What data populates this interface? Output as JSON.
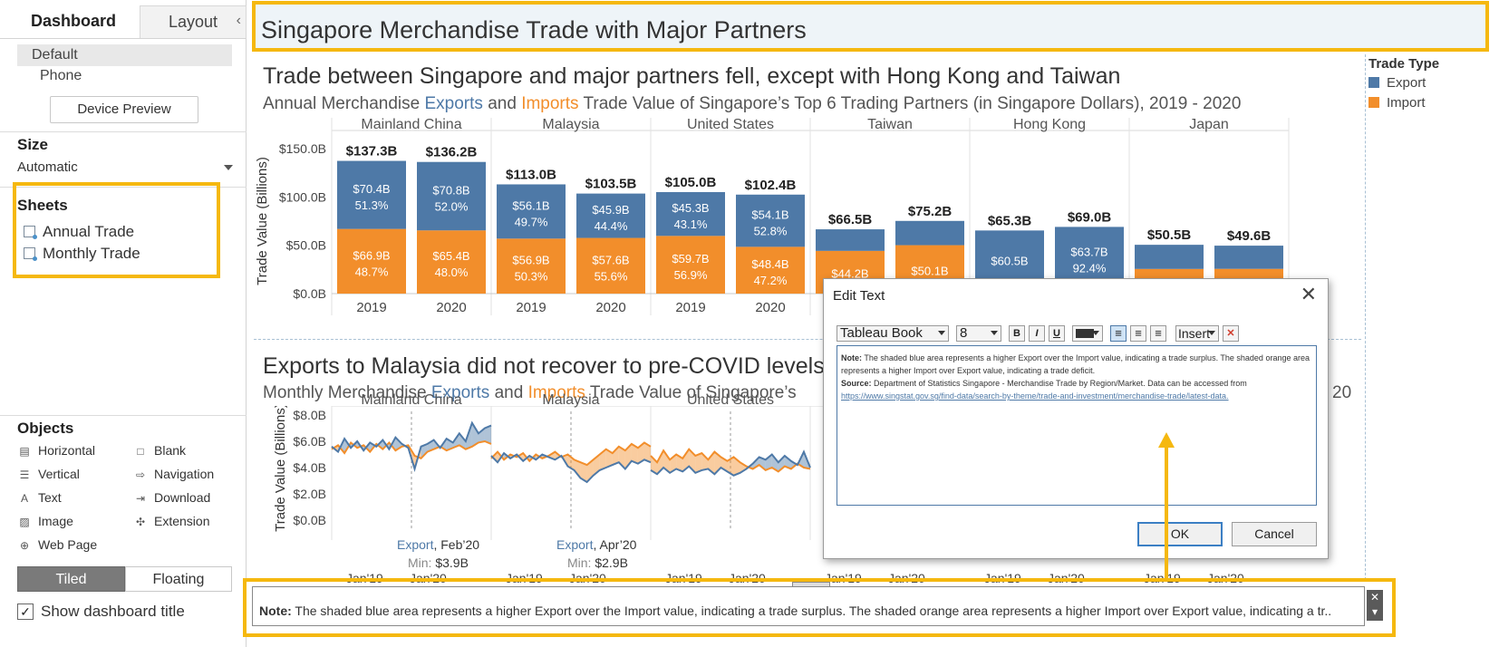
{
  "left_pane": {
    "tabs": {
      "dashboard": "Dashboard",
      "layout": "Layout",
      "collapse": "‹"
    },
    "device": {
      "default": "Default",
      "phone": "Phone",
      "preview_button": "Device Preview"
    },
    "size": {
      "heading": "Size",
      "value": "Automatic"
    },
    "sheets": {
      "heading": "Sheets",
      "items": [
        "Annual Trade",
        "Monthly Trade"
      ]
    },
    "objects": {
      "heading": "Objects",
      "items": [
        {
          "label": "Horizontal",
          "icon": "▤"
        },
        {
          "label": "Blank",
          "icon": "□"
        },
        {
          "label": "Vertical",
          "icon": "☰"
        },
        {
          "label": "Navigation",
          "icon": "⇨"
        },
        {
          "label": "Text",
          "icon": "A"
        },
        {
          "label": "Download",
          "icon": "⇥"
        },
        {
          "label": "Image",
          "icon": "▨"
        },
        {
          "label": "Extension",
          "icon": "✣"
        },
        {
          "label": "Web Page",
          "icon": "⊕"
        }
      ]
    },
    "layout_mode": {
      "tiled": "Tiled",
      "floating": "Floating"
    },
    "show_title": {
      "checked": "✓",
      "label": "Show dashboard title"
    }
  },
  "dashboard": {
    "title": "Singapore Merchandise Trade with Major Partners",
    "annual": {
      "title": "Trade between Singapore and major partners fell, except with Hong Kong and Taiwan",
      "sub_prefix": "Annual Merchandise ",
      "sub_exports": "Exports",
      "sub_and": " and ",
      "sub_imports": "Imports",
      "sub_suffix": " Trade Value of Singapore’s Top 6 Trading Partners (in Singapore Dollars), 2019 - 2020"
    },
    "monthly": {
      "title": "Exports to Malaysia did not recover to pre-COVID levels",
      "sub_prefix": "Monthly Merchandise ",
      "sub_exports": "Exports",
      "sub_and": " and ",
      "sub_imports": "Imports",
      "sub_suffix": " Trade Value of Singapore’s",
      "sub_tail": "20"
    },
    "legend": {
      "title": "Trade Type",
      "export": "Export",
      "import": "Import"
    },
    "colors": {
      "export": "#4e79a7",
      "import": "#f28e2b",
      "highlight": "#f5b80f"
    },
    "note": {
      "label": "Note:",
      "text": " The shaded blue area represents a higher Export over the Import value, indicating a trade surplus. The shaded orange area represents a higher Import over Export value, indicating a tr..",
      "close_icon": "✕",
      "menu_icon": "▾"
    }
  },
  "chart_data": [
    {
      "type": "bar",
      "stacked": true,
      "partners": [
        "Mainland China",
        "Malaysia",
        "United States",
        "Taiwan",
        "Hong Kong",
        "Japan"
      ],
      "years": [
        "2019",
        "2020"
      ],
      "ylabel": "Trade Value (Billions)",
      "ylim": [
        0,
        150
      ],
      "yticks": [
        "$0.0B",
        "$50.0B",
        "$100.0B",
        "$150.0B"
      ],
      "bars": [
        {
          "partner": "Mainland China",
          "year": "2019",
          "total": 137.3,
          "total_label": "$137.3B",
          "export": 70.4,
          "export_label": "$70.4B",
          "export_pct": "51.3%",
          "import": 66.9,
          "import_label": "$66.9B",
          "import_pct": "48.7%"
        },
        {
          "partner": "Mainland China",
          "year": "2020",
          "total": 136.2,
          "total_label": "$136.2B",
          "export": 70.8,
          "export_label": "$70.8B",
          "export_pct": "52.0%",
          "import": 65.4,
          "import_label": "$65.4B",
          "import_pct": "48.0%"
        },
        {
          "partner": "Malaysia",
          "year": "2019",
          "total": 113.0,
          "total_label": "$113.0B",
          "export": 56.1,
          "export_label": "$56.1B",
          "export_pct": "49.7%",
          "import": 56.9,
          "import_label": "$56.9B",
          "import_pct": "50.3%"
        },
        {
          "partner": "Malaysia",
          "year": "2020",
          "total": 103.5,
          "total_label": "$103.5B",
          "export": 45.9,
          "export_label": "$45.9B",
          "export_pct": "44.4%",
          "import": 57.6,
          "import_label": "$57.6B",
          "import_pct": "55.6%"
        },
        {
          "partner": "United States",
          "year": "2019",
          "total": 105.0,
          "total_label": "$105.0B",
          "export": 45.3,
          "export_label": "$45.3B",
          "export_pct": "43.1%",
          "import": 59.7,
          "import_label": "$59.7B",
          "import_pct": "56.9%"
        },
        {
          "partner": "United States",
          "year": "2020",
          "total": 102.4,
          "total_label": "$102.4B",
          "export": 54.1,
          "export_label": "$54.1B",
          "export_pct": "52.8%",
          "import": 48.4,
          "import_label": "$48.4B",
          "import_pct": "47.2%"
        },
        {
          "partner": "Taiwan",
          "year": "2019",
          "total": 66.5,
          "total_label": "$66.5B",
          "export": 22.3,
          "export_label": "",
          "export_pct": "",
          "import": 44.2,
          "import_label": "$44.2B",
          "import_pct": ""
        },
        {
          "partner": "Taiwan",
          "year": "2020",
          "total": 75.2,
          "total_label": "$75.2B",
          "export": 25.1,
          "export_label": "",
          "export_pct": "",
          "import": 50.1,
          "import_label": "$50.1B",
          "import_pct": ""
        },
        {
          "partner": "Hong Kong",
          "year": "2019",
          "total": 65.3,
          "total_label": "$65.3B",
          "export": 60.5,
          "export_label": "$60.5B",
          "export_pct": "",
          "import": 4.8,
          "import_label": "",
          "import_pct": ""
        },
        {
          "partner": "Hong Kong",
          "year": "2020",
          "total": 69.0,
          "total_label": "$69.0B",
          "export": 63.7,
          "export_label": "$63.7B",
          "export_pct": "92.4%",
          "import": 5.3,
          "import_label": "",
          "import_pct": ""
        },
        {
          "partner": "Japan",
          "year": "2019",
          "total": 50.5,
          "total_label": "$50.5B",
          "export": 25.0,
          "export_label": "",
          "export_pct": "",
          "import": 25.5,
          "import_label": "",
          "import_pct": ""
        },
        {
          "partner": "Japan",
          "year": "2020",
          "total": 49.6,
          "total_label": "$49.6B",
          "export": 24.0,
          "export_label": "",
          "export_pct": "",
          "import": 25.6,
          "import_label": "",
          "import_pct": ""
        }
      ]
    },
    {
      "type": "line",
      "partners": [
        "Mainland China",
        "Malaysia",
        "United States",
        "Taiwan",
        "Hong Kong",
        "Japan"
      ],
      "xticks": [
        "Jan'19",
        "Jan'20"
      ],
      "ylabel": "Trade Value (Billions)",
      "ylim": [
        0,
        8
      ],
      "yticks": [
        "$0.0B",
        "$2.0B",
        "$4.0B",
        "$6.0B",
        "$8.0B"
      ],
      "panels": [
        {
          "partner": "Mainland China",
          "export": [
            5.6,
            5.2,
            6.2,
            5.5,
            6.0,
            5.3,
            5.9,
            5.6,
            6.1,
            5.4,
            6.3,
            5.8,
            5.5,
            3.9,
            5.6,
            5.8,
            6.1,
            5.5,
            6.2,
            5.9,
            6.6,
            6.0,
            7.4,
            6.6,
            7.0,
            7.2
          ],
          "import": [
            5.4,
            5.7,
            5.1,
            5.9,
            5.5,
            5.7,
            5.2,
            5.8,
            5.4,
            5.9,
            5.3,
            5.6,
            5.7,
            4.9,
            4.7,
            5.2,
            5.4,
            5.6,
            5.3,
            5.5,
            5.7,
            5.4,
            5.6,
            5.9,
            6.0,
            5.8
          ],
          "annotation": {
            "series": "Export",
            "date": "Feb’20",
            "label": "Min:",
            "value": "$3.9B"
          }
        },
        {
          "partner": "Malaysia",
          "export": [
            4.9,
            4.4,
            5.1,
            4.7,
            5.0,
            4.5,
            4.9,
            4.6,
            5.0,
            4.8,
            4.6,
            4.9,
            4.1,
            3.8,
            3.2,
            2.9,
            3.4,
            3.8,
            4.0,
            4.2,
            4.4,
            3.9,
            4.5,
            4.3,
            4.6,
            4.4
          ],
          "import": [
            4.7,
            5.2,
            4.6,
            5.0,
            4.8,
            5.1,
            4.5,
            5.0,
            4.7,
            4.9,
            5.2,
            4.8,
            5.0,
            4.6,
            4.4,
            4.2,
            4.6,
            5.0,
            5.4,
            5.1,
            5.6,
            5.3,
            5.8,
            5.5,
            5.9,
            5.6
          ],
          "annotation": {
            "series": "Export",
            "date": "Apr’20",
            "label": "Min:",
            "value": "$2.9B"
          }
        },
        {
          "partner": "United States",
          "export": [
            3.8,
            3.5,
            4.0,
            3.6,
            3.9,
            3.7,
            4.1,
            3.6,
            3.8,
            3.9,
            3.5,
            4.0,
            3.7,
            3.4,
            3.6,
            3.9,
            4.3,
            4.8,
            4.6,
            5.0,
            4.4,
            4.9,
            4.5,
            4.2,
            5.2,
            4.0
          ],
          "import": [
            4.9,
            4.4,
            5.3,
            4.6,
            5.0,
            4.7,
            5.4,
            4.9,
            5.1,
            4.6,
            5.2,
            4.8,
            4.5,
            4.8,
            4.4,
            4.1,
            3.9,
            4.2,
            3.8,
            4.0,
            3.7,
            4.1,
            3.9,
            4.3,
            4.0,
            3.9
          ]
        }
      ]
    }
  ],
  "edit_text_dialog": {
    "title": "Edit Text",
    "close": "✕",
    "font": "Tableau Book",
    "font_size": "8",
    "bold": "B",
    "italic": "I",
    "underline": "U",
    "align_left": "≡",
    "align_center": "≡",
    "align_right": "≡",
    "insert": "Insert",
    "clear": "✕",
    "body": {
      "note_label": "Note:",
      "note_text": " The shaded blue area represents a higher Export over the Import value, indicating a trade surplus. The shaded orange area represents a higher Import over Export value, indicating a trade deficit.",
      "source_label": "Source:",
      "source_text": " Department of Statistics Singapore - Merchandise Trade by Region/Market. Data can be accessed from",
      "link": "https://www.singstat.gov.sg/find-data/search-by-theme/trade-and-investment/merchandise-trade/latest-data."
    },
    "ok": "OK",
    "cancel": "Cancel"
  }
}
